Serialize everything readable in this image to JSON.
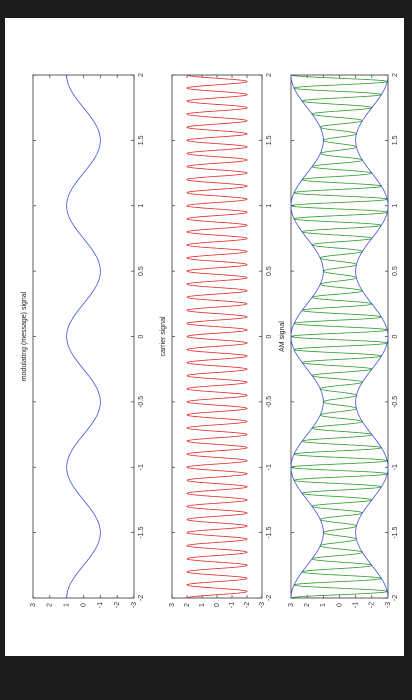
{
  "colors": {
    "message": "#3b4fd6",
    "carrier": "#e02a2a",
    "am": "#2f9a2f",
    "envelope": "#3b4fd6",
    "axis": "#333333",
    "frame": "#1b1b1b"
  },
  "chart_data": [
    {
      "type": "line",
      "title": "modulating (message) signal",
      "xlim": [
        -2,
        2
      ],
      "ylim": [
        -3,
        3
      ],
      "x_ticks": [
        "-2",
        "-1.5",
        "-1",
        "-0.5",
        "0",
        "0.5",
        "1",
        "1.5",
        "2"
      ],
      "y_ticks": [
        "-3",
        "-2",
        "-1",
        "0",
        "1",
        "2",
        "3"
      ],
      "series": [
        {
          "function": "cos",
          "amplitude": 1,
          "frequency": 2,
          "x_range": [
            -2,
            2
          ]
        }
      ]
    },
    {
      "type": "line",
      "title": "carrier signal",
      "xlim": [
        -2,
        2
      ],
      "ylim": [
        -3,
        3
      ],
      "x_ticks": [
        "-2",
        "-1.5",
        "-1",
        "-0.5",
        "0",
        "0.5",
        "1",
        "1.5",
        "2"
      ],
      "y_ticks": [
        "-3",
        "-2",
        "-1",
        "0",
        "1",
        "2",
        "3"
      ],
      "series": [
        {
          "function": "cos",
          "amplitude": 2,
          "frequency": 20,
          "x_range": [
            -2,
            2
          ]
        }
      ]
    },
    {
      "type": "line",
      "title": "AM signal",
      "xlim": [
        -2,
        2
      ],
      "ylim": [
        -3,
        3
      ],
      "x_ticks": [
        "-2",
        "-1.5",
        "-1",
        "-0.5",
        "0",
        "0.5",
        "1",
        "1.5",
        "2"
      ],
      "y_ticks": [
        "-3",
        "-2",
        "-1",
        "0",
        "1",
        "2",
        "3"
      ],
      "series": [
        {
          "function": "am",
          "carrier_amplitude": 2,
          "modulation_index": 0.5,
          "message_frequency": 2,
          "carrier_frequency": 20,
          "x_range": [
            -2,
            2
          ]
        },
        {
          "function": "envelope",
          "carrier_amplitude": 2,
          "modulation_index": 0.5,
          "message_frequency": 2,
          "x_range": [
            -2,
            2
          ]
        }
      ]
    }
  ]
}
